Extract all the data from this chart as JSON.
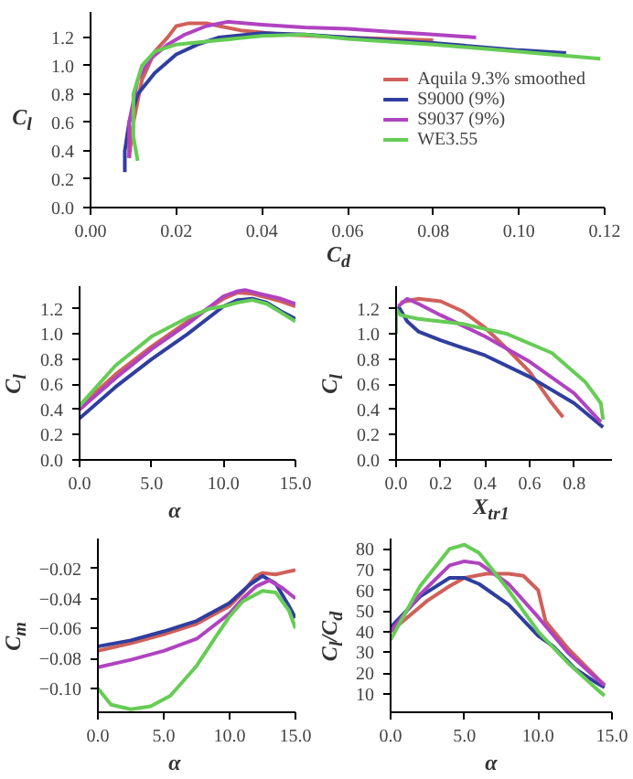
{
  "chart_data": [
    {
      "type": "line",
      "xlabel": "C$_{d}$",
      "ylabel": "C$_{l}$",
      "xlim": [
        0,
        0.12
      ],
      "ylim": [
        0,
        1.38
      ],
      "xticks": [
        {
          "value": 0,
          "label": "0.00"
        },
        0.02,
        0.04,
        0.06,
        0.08,
        {
          "value": 0.1,
          "label": "0.10"
        },
        0.12
      ],
      "yticks": [
        {
          "value": 0,
          "label": "0.0"
        },
        0.2,
        0.4,
        0.6,
        0.8,
        {
          "value": 1,
          "label": "1.0"
        },
        1.2
      ],
      "grid": false,
      "legend": "right",
      "series": [
        {
          "name": "Aquila 9.3% smoothed",
          "color": "#d0605a",
          "x": [
            0.009,
            0.01,
            0.012,
            0.015,
            0.018,
            0.02,
            0.023,
            0.027,
            0.03,
            0.035,
            0.045,
            0.06,
            0.07,
            0.08
          ],
          "values": [
            0.35,
            0.6,
            0.9,
            1.1,
            1.2,
            1.28,
            1.3,
            1.3,
            1.28,
            1.25,
            1.22,
            1.2,
            1.19,
            1.18
          ]
        },
        {
          "name": "S9000 (9%)",
          "color": "#2f3e9e",
          "x": [
            0.008,
            0.008,
            0.009,
            0.011,
            0.015,
            0.02,
            0.025,
            0.03,
            0.04,
            0.05,
            0.06,
            0.08,
            0.1,
            0.111
          ],
          "values": [
            0.25,
            0.4,
            0.6,
            0.8,
            0.95,
            1.08,
            1.15,
            1.2,
            1.23,
            1.22,
            1.2,
            1.16,
            1.11,
            1.09
          ]
        },
        {
          "name": "S9037 (9%)",
          "color": "#b043c0",
          "x": [
            0.009,
            0.009,
            0.011,
            0.014,
            0.018,
            0.022,
            0.027,
            0.032,
            0.04,
            0.05,
            0.06,
            0.07,
            0.08,
            0.09
          ],
          "values": [
            0.35,
            0.6,
            0.9,
            1.05,
            1.15,
            1.22,
            1.28,
            1.31,
            1.29,
            1.27,
            1.26,
            1.24,
            1.22,
            1.2
          ]
        },
        {
          "name": "WE3.55",
          "color": "#66cc55",
          "x": [
            0.011,
            0.01,
            0.01,
            0.012,
            0.015,
            0.02,
            0.03,
            0.04,
            0.05,
            0.06,
            0.08,
            0.1,
            0.119
          ],
          "values": [
            0.33,
            0.5,
            0.8,
            1.0,
            1.1,
            1.15,
            1.18,
            1.21,
            1.22,
            1.19,
            1.15,
            1.1,
            1.05
          ]
        }
      ]
    },
    {
      "type": "line",
      "xlabel": "α",
      "ylabel": "C$_{l}$",
      "xlim": [
        0,
        15
      ],
      "ylim": [
        0,
        1.38
      ],
      "xticks": [
        {
          "value": 0,
          "label": "0.0"
        },
        {
          "value": 5,
          "label": "5.0"
        },
        {
          "value": 10,
          "label": "10.0"
        },
        {
          "value": 15,
          "label": "15.0"
        }
      ],
      "yticks": [
        {
          "value": 0,
          "label": "0.0"
        },
        0.2,
        0.4,
        0.6,
        0.8,
        {
          "value": 1,
          "label": "1.0"
        },
        1.2
      ],
      "grid": false,
      "series": [
        {
          "color": "#d0605a",
          "x": [
            0,
            2.5,
            5,
            7.5,
            10,
            11,
            12,
            13,
            14,
            15
          ],
          "values": [
            0.42,
            0.68,
            0.9,
            1.1,
            1.28,
            1.33,
            1.32,
            1.29,
            1.26,
            1.22
          ]
        },
        {
          "color": "#2f3e9e",
          "x": [
            0,
            2.5,
            5,
            7.5,
            10,
            11,
            12,
            13,
            14,
            15
          ],
          "values": [
            0.33,
            0.58,
            0.8,
            1.0,
            1.22,
            1.27,
            1.28,
            1.25,
            1.18,
            1.12
          ]
        },
        {
          "color": "#b043c0",
          "x": [
            0,
            2.5,
            5,
            7.5,
            10,
            11,
            11.5,
            12.5,
            14,
            15
          ],
          "values": [
            0.4,
            0.65,
            0.88,
            1.08,
            1.3,
            1.34,
            1.35,
            1.32,
            1.28,
            1.24
          ]
        },
        {
          "color": "#66cc55",
          "x": [
            0,
            2.5,
            5,
            7.5,
            9,
            10,
            11,
            12,
            13,
            14,
            15
          ],
          "values": [
            0.43,
            0.75,
            0.98,
            1.13,
            1.2,
            1.22,
            1.25,
            1.27,
            1.24,
            1.17,
            1.1
          ]
        }
      ]
    },
    {
      "type": "line",
      "xlabel": "X$_{tr1}$",
      "ylabel": "C$_{l}$",
      "xlim": [
        0,
        0.97
      ],
      "ylim": [
        0,
        1.38
      ],
      "xticks": [
        {
          "value": 0,
          "label": "0.0"
        },
        0.2,
        0.4,
        0.6,
        0.8
      ],
      "yticks": [
        {
          "value": 0,
          "label": "0.0"
        },
        0.2,
        0.4,
        0.6,
        0.8,
        {
          "value": 1,
          "label": "1.0"
        },
        1.2
      ],
      "grid": false,
      "series": [
        {
          "color": "#d0605a",
          "x": [
            0.02,
            0.1,
            0.2,
            0.3,
            0.4,
            0.5,
            0.6,
            0.7,
            0.75
          ],
          "values": [
            1.25,
            1.28,
            1.26,
            1.18,
            1.05,
            0.88,
            0.7,
            0.45,
            0.34
          ]
        },
        {
          "color": "#2f3e9e",
          "x": [
            0.01,
            0.05,
            0.1,
            0.2,
            0.4,
            0.6,
            0.8,
            0.93
          ],
          "values": [
            1.22,
            1.1,
            1.02,
            0.95,
            0.83,
            0.66,
            0.45,
            0.26
          ]
        },
        {
          "color": "#b043c0",
          "x": [
            0.01,
            0.05,
            0.1,
            0.2,
            0.4,
            0.6,
            0.8,
            0.92
          ],
          "values": [
            1.22,
            1.28,
            1.24,
            1.15,
            0.98,
            0.78,
            0.53,
            0.3
          ]
        },
        {
          "color": "#66cc55",
          "x": [
            0,
            0,
            0.02,
            0.1,
            0.3,
            0.5,
            0.7,
            0.85,
            0.92,
            0.93
          ],
          "values": [
            1.0,
            1.2,
            1.15,
            1.12,
            1.08,
            1.0,
            0.85,
            0.62,
            0.45,
            0.32
          ]
        }
      ]
    },
    {
      "type": "line",
      "xlabel": "α",
      "ylabel": "C$_{m}$",
      "xlim": [
        0,
        15
      ],
      "ylim": [
        -0.116,
        0
      ],
      "xticks": [
        {
          "value": 0,
          "label": "0.0"
        },
        {
          "value": 5,
          "label": "5.0"
        },
        {
          "value": 10,
          "label": "10.0"
        },
        {
          "value": 15,
          "label": "15.0"
        }
      ],
      "yticks": [
        {
          "value": -0.02,
          "label": "−0.02"
        },
        {
          "value": -0.04,
          "label": "−0.04"
        },
        {
          "value": -0.06,
          "label": "−0.06"
        },
        {
          "value": -0.08,
          "label": "−0.08"
        },
        {
          "value": -0.1,
          "label": "−0.10"
        }
      ],
      "grid": false,
      "series": [
        {
          "color": "#d0605a",
          "x": [
            0,
            2.5,
            5,
            7.5,
            10,
            11,
            12,
            12.5,
            13.5,
            14,
            14.5,
            15
          ],
          "values": [
            -0.075,
            -0.07,
            -0.064,
            -0.057,
            -0.045,
            -0.036,
            -0.025,
            -0.023,
            -0.024,
            -0.023,
            -0.022,
            -0.021
          ]
        },
        {
          "color": "#2f3e9e",
          "x": [
            0,
            2.5,
            5,
            7.5,
            10,
            11.5,
            12.5,
            13.5,
            14.5,
            15
          ],
          "values": [
            -0.072,
            -0.068,
            -0.062,
            -0.055,
            -0.043,
            -0.031,
            -0.025,
            -0.03,
            -0.045,
            -0.053
          ]
        },
        {
          "color": "#b043c0",
          "x": [
            0,
            2.5,
            5,
            7.5,
            10,
            11,
            12,
            13,
            14,
            15
          ],
          "values": [
            -0.086,
            -0.081,
            -0.075,
            -0.067,
            -0.05,
            -0.04,
            -0.032,
            -0.028,
            -0.033,
            -0.04
          ]
        },
        {
          "color": "#66cc55",
          "x": [
            0,
            1,
            2.5,
            4,
            5.5,
            7.5,
            9,
            10,
            11,
            12.5,
            13.5,
            14.5,
            15
          ],
          "values": [
            -0.1,
            -0.111,
            -0.114,
            -0.112,
            -0.105,
            -0.085,
            -0.065,
            -0.052,
            -0.042,
            -0.035,
            -0.036,
            -0.048,
            -0.06
          ]
        }
      ]
    },
    {
      "type": "line",
      "xlabel": "α",
      "ylabel": "C$_{l}$/C$_{d}$",
      "xlim": [
        0,
        15
      ],
      "ylim": [
        1,
        85
      ],
      "xticks": [
        {
          "value": 0,
          "label": "0.0"
        },
        {
          "value": 5,
          "label": "5.0"
        },
        {
          "value": 10,
          "label": "10.0"
        },
        {
          "value": 15,
          "label": "15.0"
        }
      ],
      "yticks": [
        10,
        20,
        30,
        40,
        50,
        60,
        70,
        80
      ],
      "grid": false,
      "series": [
        {
          "color": "#d0605a",
          "x": [
            0,
            2.5,
            4,
            5,
            6.5,
            8,
            9,
            10,
            10.5,
            12,
            14.5
          ],
          "values": [
            40,
            55,
            62,
            66,
            68,
            68,
            67,
            60,
            45,
            32,
            14
          ]
        },
        {
          "color": "#2f3e9e",
          "x": [
            0,
            2,
            4,
            5,
            6,
            8,
            10,
            11,
            12.5,
            14,
            14.5
          ],
          "values": [
            42,
            57,
            66,
            66,
            63,
            53,
            38,
            33,
            22,
            15,
            13
          ]
        },
        {
          "color": "#b043c0",
          "x": [
            0,
            2,
            4,
            5,
            6,
            8,
            10,
            12,
            14,
            14.5
          ],
          "values": [
            40,
            58,
            72,
            74,
            73,
            63,
            47,
            30,
            17,
            14
          ]
        },
        {
          "color": "#66cc55",
          "x": [
            0,
            2,
            4,
            5,
            6,
            8,
            10,
            12,
            14,
            14.5
          ],
          "values": [
            36,
            62,
            80,
            82,
            78,
            60,
            40,
            25,
            12,
            9
          ]
        }
      ]
    }
  ]
}
